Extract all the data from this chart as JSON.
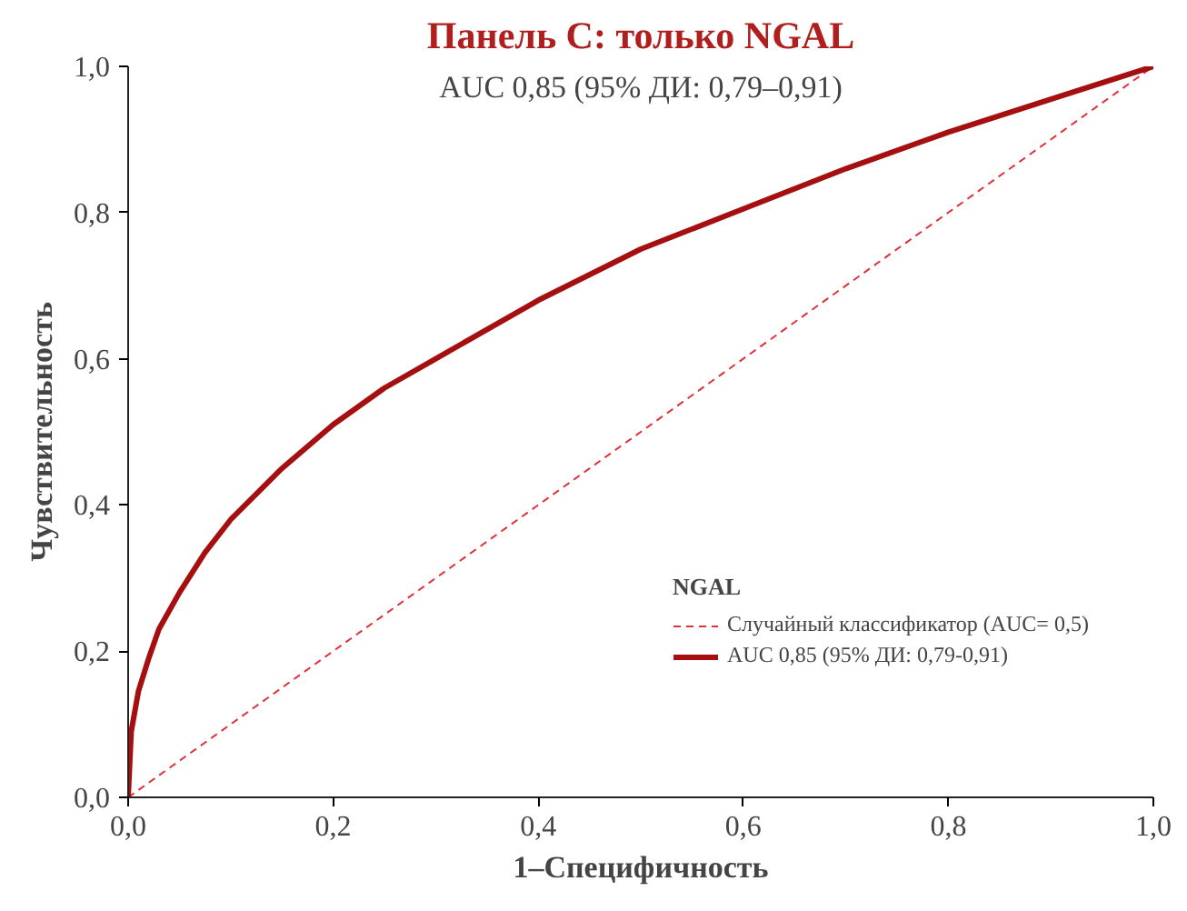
{
  "chart_data": {
    "type": "line",
    "title": "Панель C: только NGAL",
    "subtitle": "AUC 0,85 (95% ДИ: 0,79–0,91)",
    "xlabel": "1–Специфичность",
    "ylabel": "Чувствительность",
    "legend_title": "NGAL",
    "legend": "right",
    "grid": false,
    "marker": "none",
    "xlim": [
      0,
      1
    ],
    "ylim": [
      0,
      1
    ],
    "xticks": [
      {
        "value": 0,
        "label": "0,0"
      },
      {
        "value": 0.2,
        "label": "0,2"
      },
      {
        "value": 0.4,
        "label": "0,4"
      },
      {
        "value": 0.6,
        "label": "0,6"
      },
      {
        "value": 0.8,
        "label": "0,8"
      },
      {
        "value": 1,
        "label": "1,0"
      }
    ],
    "yticks": [
      {
        "value": 0,
        "label": "0,0"
      },
      {
        "value": 0.2,
        "label": "0,2"
      },
      {
        "value": 0.4,
        "label": "0,4"
      },
      {
        "value": 0.6,
        "label": "0,6"
      },
      {
        "value": 0.8,
        "label": "0,8"
      },
      {
        "value": 1,
        "label": "1,0"
      }
    ],
    "series": [
      {
        "name": "Случайный классификатор (AUC= 0,5)",
        "color": "#e0303a",
        "line_style": "dashed",
        "x": [
          0,
          1
        ],
        "values": [
          0,
          1
        ]
      },
      {
        "name": "AUC 0,85 (95% ДИ: 0,79-0,91)",
        "color": "#a50f0f",
        "line_style": "solid",
        "x": [
          0,
          0.003,
          0.01,
          0.02,
          0.03,
          0.05,
          0.075,
          0.1,
          0.15,
          0.2,
          0.25,
          0.3,
          0.4,
          0.5,
          0.6,
          0.7,
          0.8,
          0.9,
          1
        ],
        "values": [
          0,
          0.09,
          0.145,
          0.19,
          0.23,
          0.28,
          0.335,
          0.38,
          0.45,
          0.51,
          0.56,
          0.6,
          0.68,
          0.75,
          0.805,
          0.86,
          0.91,
          0.955,
          1
        ]
      }
    ]
  }
}
